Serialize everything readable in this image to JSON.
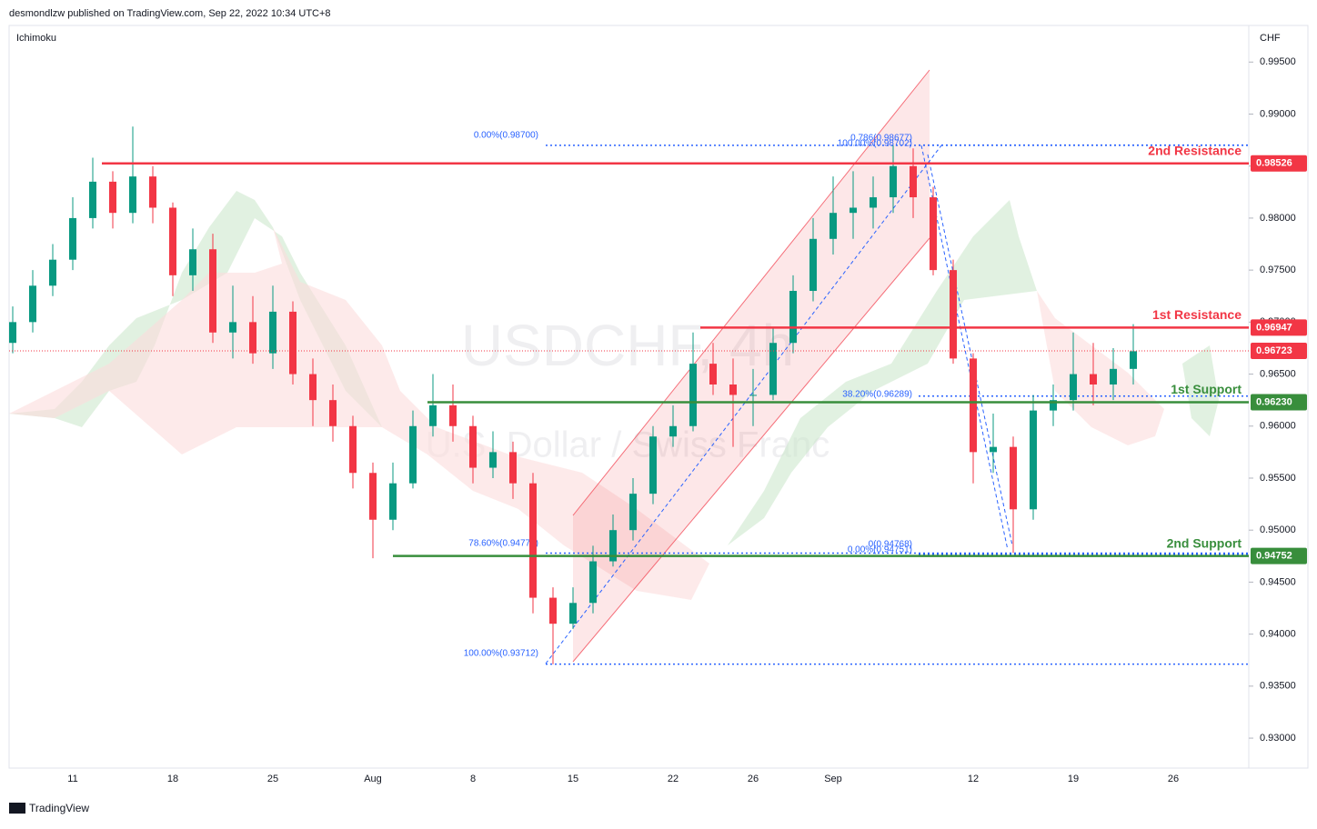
{
  "header": {
    "text": "desmondlzw published on TradingView.com, Sep 22, 2022 10:34 UTC+8"
  },
  "footer": {
    "brand": "TradingView"
  },
  "chart_data": {
    "type": "candlestick",
    "title": "USDCHF, 4h",
    "subtitle": "U.S. Dollar / Swiss Franc",
    "indicator": "Ichimoku",
    "currency": "CHF",
    "up_color": "#089981",
    "down_color": "#f23645",
    "ylim": [
      0.92712,
      0.99852
    ],
    "yticks": [
      {
        "value": 0.93,
        "label": "0.93000"
      },
      {
        "value": 0.935,
        "label": "0.93500"
      },
      {
        "value": 0.94,
        "label": "0.94000"
      },
      {
        "value": 0.945,
        "label": "0.94500"
      },
      {
        "value": 0.95,
        "label": "0.95000"
      },
      {
        "value": 0.955,
        "label": "0.95500"
      },
      {
        "value": 0.96,
        "label": "0.96000"
      },
      {
        "value": 0.965,
        "label": "0.96500"
      },
      {
        "value": 0.97,
        "label": "0.97000"
      },
      {
        "value": 0.975,
        "label": "0.97500"
      },
      {
        "value": 0.98,
        "label": "0.98000"
      },
      {
        "value": 0.985,
        "label": "0.98500"
      },
      {
        "value": 0.99,
        "label": "0.99000"
      },
      {
        "value": 0.995,
        "label": "0.99500"
      }
    ],
    "categories": [
      null,
      null,
      null,
      "11",
      null,
      null,
      null,
      null,
      "18",
      null,
      null,
      null,
      null,
      "25",
      null,
      null,
      null,
      null,
      "Aug",
      null,
      null,
      null,
      null,
      "8",
      null,
      null,
      null,
      null,
      "15",
      null,
      null,
      null,
      null,
      "22",
      null,
      null,
      null,
      "26",
      null,
      null,
      null,
      "Sep",
      null,
      null,
      null,
      null,
      null,
      null,
      "12",
      null,
      null,
      null,
      null,
      "19",
      null,
      null,
      null,
      null,
      "26",
      null,
      null
    ],
    "open": [
      0.968,
      0.97,
      0.9735,
      0.976,
      0.98,
      0.9835,
      0.9805,
      0.984,
      0.981,
      0.9745,
      0.977,
      0.969,
      0.97,
      0.967,
      0.971,
      0.965,
      0.9625,
      0.96,
      0.9555,
      0.951,
      0.9545,
      0.96,
      0.962,
      0.96,
      0.956,
      0.9575,
      0.9545,
      0.9435,
      0.941,
      0.943,
      0.947,
      0.95,
      0.9535,
      0.959,
      0.96,
      0.966,
      0.964,
      0.963,
      0.963,
      0.968,
      0.973,
      0.978,
      0.9805,
      0.981,
      0.982,
      0.985,
      0.982,
      0.975,
      0.9665,
      0.9575,
      0.958,
      0.952,
      0.9615,
      0.9625,
      0.965,
      0.964,
      0.9655,
      null,
      null,
      null,
      null
    ],
    "high": [
      0.9715,
      0.975,
      0.9775,
      0.982,
      0.9858,
      0.9845,
      0.9888,
      0.985,
      0.9815,
      0.979,
      0.9785,
      0.9735,
      0.9725,
      0.9735,
      0.972,
      0.9665,
      0.964,
      0.961,
      0.9565,
      0.9565,
      0.9615,
      0.965,
      0.964,
      0.961,
      0.9595,
      0.9585,
      0.9555,
      0.9445,
      0.9445,
      0.9485,
      0.9515,
      0.955,
      0.96,
      0.962,
      0.969,
      0.968,
      0.9665,
      0.9655,
      0.9695,
      0.9745,
      0.98,
      0.984,
      0.9845,
      0.984,
      0.987,
      0.9867,
      0.983,
      0.976,
      0.967,
      0.9612,
      0.959,
      0.963,
      0.964,
      0.969,
      0.968,
      0.9675,
      0.9698,
      null,
      null,
      null,
      null
    ],
    "low": [
      0.967,
      0.969,
      0.9725,
      0.975,
      0.979,
      0.979,
      0.9795,
      0.9795,
      0.9725,
      0.973,
      0.968,
      0.9665,
      0.966,
      0.9655,
      0.964,
      0.96,
      0.9585,
      0.954,
      0.9473,
      0.95,
      0.954,
      0.959,
      0.9585,
      0.9545,
      0.955,
      0.953,
      0.942,
      0.9371,
      0.9405,
      0.942,
      0.9465,
      0.949,
      0.9525,
      0.958,
      0.9595,
      0.963,
      0.958,
      0.96,
      0.9625,
      0.967,
      0.972,
      0.9765,
      0.978,
      0.979,
      0.9805,
      0.98,
      0.9745,
      0.966,
      0.9545,
      0.9555,
      0.9478,
      0.951,
      0.96,
      0.9615,
      0.962,
      0.9625,
      0.964,
      null,
      null,
      null,
      null
    ],
    "close": [
      0.97,
      0.9735,
      0.976,
      0.98,
      0.9835,
      0.9805,
      0.984,
      0.981,
      0.9745,
      0.977,
      0.969,
      0.97,
      0.967,
      0.971,
      0.965,
      0.9625,
      0.96,
      0.9555,
      0.951,
      0.9545,
      0.96,
      0.962,
      0.96,
      0.956,
      0.9575,
      0.9545,
      0.9435,
      0.941,
      0.943,
      0.947,
      0.95,
      0.9535,
      0.959,
      0.96,
      0.966,
      0.964,
      0.963,
      0.963,
      0.968,
      0.973,
      0.978,
      0.9805,
      0.981,
      0.982,
      0.985,
      0.982,
      0.975,
      0.9665,
      0.9575,
      0.958,
      0.952,
      0.9615,
      0.9625,
      0.965,
      0.964,
      0.9655,
      0.9672,
      null,
      null,
      null,
      null
    ],
    "current_price": {
      "value": 0.96723,
      "label": "0.96723",
      "color": "#f23645"
    },
    "levels": [
      {
        "name": "2nd Resistance",
        "value": 0.98526,
        "label": "0.98526",
        "color": "#f23645"
      },
      {
        "name": "1st Resistance",
        "value": 0.96947,
        "label": "0.96947",
        "color": "#f23645"
      },
      {
        "name": "1st Support",
        "value": 0.9623,
        "label": "0.96230",
        "color": "#388e3c"
      },
      {
        "name": "2nd Support",
        "value": 0.94752,
        "label": "0.94752",
        "color": "#388e3c"
      }
    ],
    "fib_color": "#2962ff",
    "fib_levels": [
      {
        "value": 0.987,
        "label": "0.00%(0.98700)"
      },
      {
        "value": 0.94779,
        "label": "78.60%(0.94779)"
      },
      {
        "value": 0.93712,
        "label": "100.00%(0.93712)"
      },
      {
        "value": 0.98677,
        "label": "0.786(0.98677)"
      },
      {
        "value": 0.98702,
        "label": "100.00%(0.98702)"
      },
      {
        "value": 0.96289,
        "label": "38.20%(0.96289)"
      },
      {
        "value": 0.94768,
        "label": "0(0.94768)"
      },
      {
        "value": 0.94751,
        "label": "0.00%(0.94751)"
      }
    ]
  }
}
